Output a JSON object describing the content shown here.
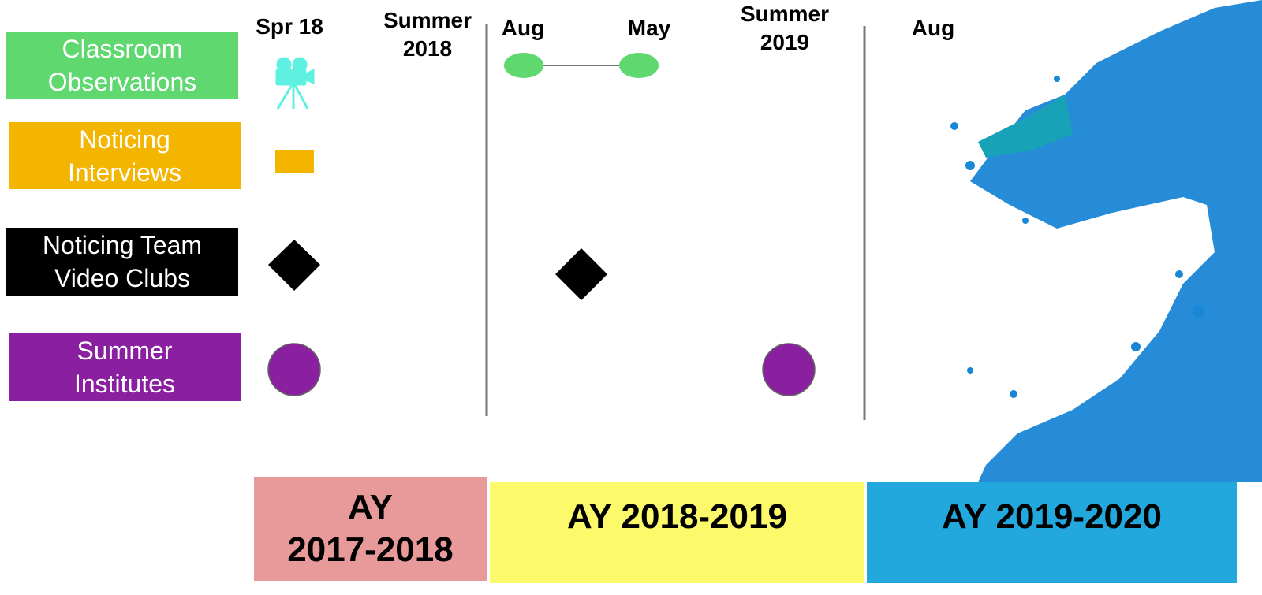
{
  "columns": [
    {
      "lines": [
        "Spr 18"
      ]
    },
    {
      "lines": [
        "Summer",
        "2018"
      ]
    },
    {
      "lines": [
        "Aug"
      ]
    },
    {
      "lines": [
        "May"
      ]
    },
    {
      "lines": [
        "Summer",
        "2019"
      ]
    },
    {
      "lines": [
        "Aug"
      ]
    }
  ],
  "rows": [
    {
      "lines": [
        "Classroom",
        "Observations"
      ]
    },
    {
      "lines": [
        "Noticing",
        "Interviews"
      ]
    },
    {
      "lines": [
        "Noticing Team",
        "Video Clubs"
      ]
    },
    {
      "lines": [
        "Summer",
        "Institutes"
      ]
    }
  ],
  "years": [
    {
      "lines": [
        "AY",
        "2017-2018"
      ]
    },
    {
      "lines": [
        "AY 2018-2019"
      ]
    },
    {
      "lines": [
        "AY 2019-2020"
      ]
    }
  ]
}
